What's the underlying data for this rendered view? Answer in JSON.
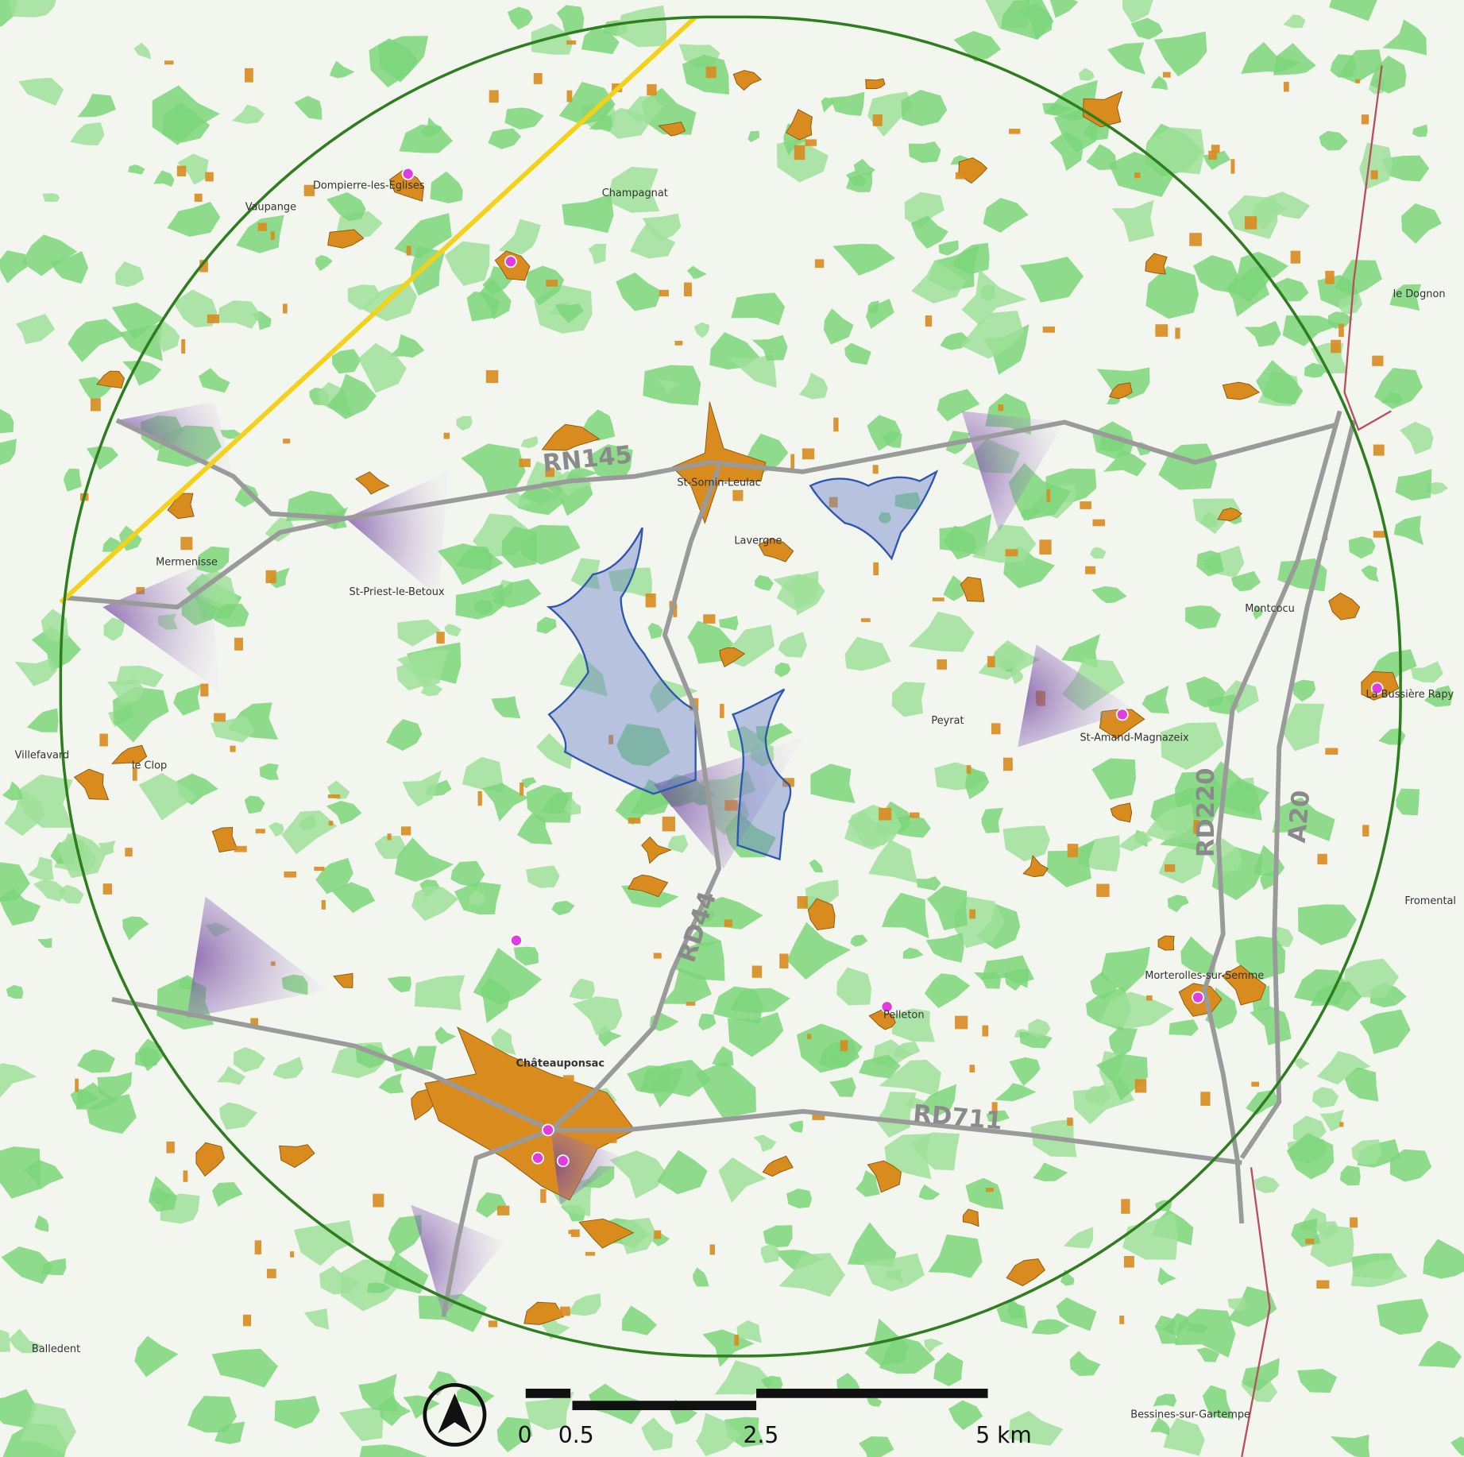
{
  "roads": {
    "rn145": "RN145",
    "rd44": "RD44",
    "rd220": "RD220",
    "a20": "A20",
    "rd711": "RD711"
  },
  "places": [
    "Châteauponsac",
    "Dompierre-les-Eglises",
    "St-Sornin-Leulac",
    "St-Amand-Magnazeix",
    "Morterolles-sur-Semme",
    "Bessines-sur-Gartempe",
    "Villefavard",
    "Balledent",
    "Fromental",
    "St-Priest-le-Betoux",
    "le Dognon",
    "La Bussière Rapy",
    "Vaupange",
    "Champagnat",
    "Mermenisse",
    "le Clop",
    "Lavergne",
    "Peyrat",
    "Pelleton",
    "Montcocu"
  ],
  "scale_bar": {
    "labels": [
      "0",
      "0.5",
      "2.5",
      "5 km"
    ]
  }
}
